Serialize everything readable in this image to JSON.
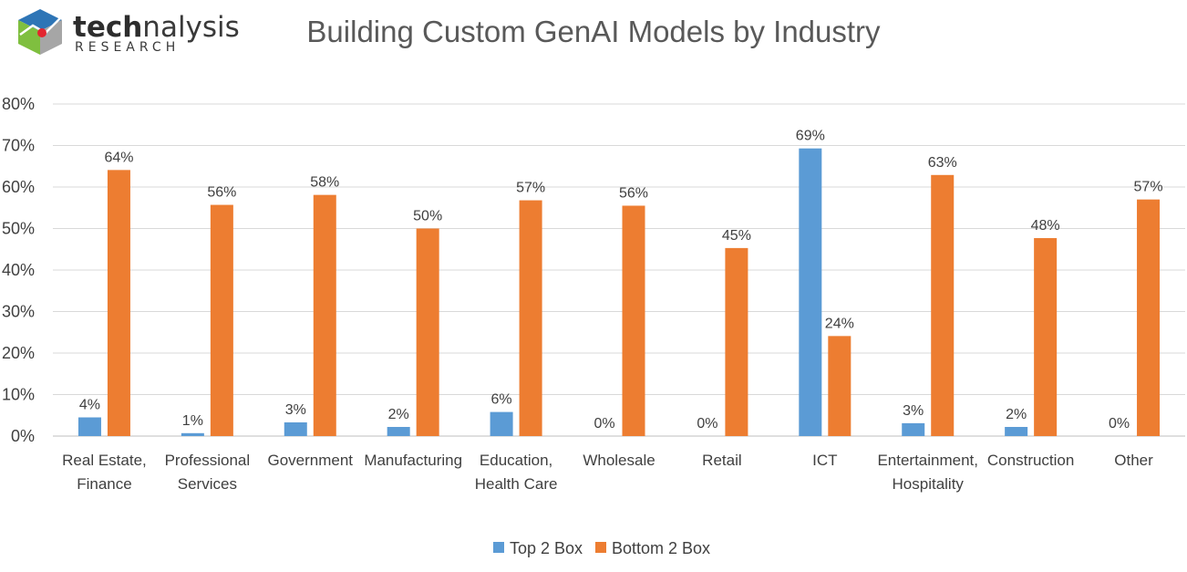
{
  "logo": {
    "word_bold": "tech",
    "word_light": "nalysis",
    "sub": "RESEARCH"
  },
  "colors": {
    "top": "#5b9bd5",
    "bottom": "#ed7d31",
    "grid": "#d9d9d9",
    "text": "#404040"
  },
  "chart_data": {
    "type": "bar",
    "title": "Building Custom GenAI Models by Industry",
    "categories": [
      [
        "Real Estate,",
        "Finance"
      ],
      [
        "Professional",
        "Services"
      ],
      [
        "Government"
      ],
      [
        "Manufacturing"
      ],
      [
        "Education,",
        "Health Care"
      ],
      [
        "Wholesale"
      ],
      [
        "Retail"
      ],
      [
        "ICT"
      ],
      [
        "Entertainment,",
        "Hospitality"
      ],
      [
        "Construction"
      ],
      [
        "Other"
      ]
    ],
    "series": [
      {
        "name": "Top 2 Box",
        "color": "#5b9bd5",
        "values": [
          4.5,
          0.7,
          3.3,
          2.2,
          5.8,
          0,
          0,
          69.3,
          3.1,
          2.2,
          0
        ],
        "labels": [
          "4%",
          "1%",
          "3%",
          "2%",
          "6%",
          "0%",
          "0%",
          "69%",
          "3%",
          "2%",
          "0%"
        ]
      },
      {
        "name": "Bottom 2 Box",
        "color": "#ed7d31",
        "values": [
          64.1,
          55.7,
          58.1,
          50.0,
          56.8,
          55.5,
          45.3,
          24.1,
          62.9,
          47.7,
          57.0
        ],
        "labels": [
          "64%",
          "56%",
          "58%",
          "50%",
          "57%",
          "56%",
          "45%",
          "24%",
          "63%",
          "48%",
          "57%"
        ]
      }
    ],
    "yticks": [
      "0%",
      "10%",
      "20%",
      "30%",
      "40%",
      "50%",
      "60%",
      "70%",
      "80%"
    ],
    "ylim": [
      0,
      80
    ],
    "grid": true,
    "legend": "bottom-center"
  }
}
